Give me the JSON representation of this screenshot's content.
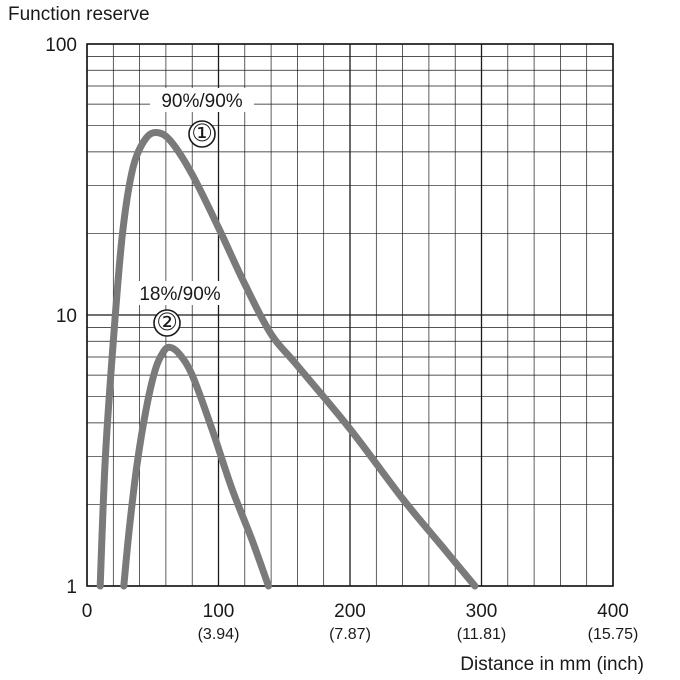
{
  "chart_data": {
    "type": "line",
    "ylabel": "Function reserve",
    "xlabel": "Distance in mm (inch)",
    "yscale": "log",
    "ylim": [
      1,
      100
    ],
    "xlim": [
      0,
      400
    ],
    "grid": true,
    "y_ticks": [
      {
        "value": 1,
        "label": "1"
      },
      {
        "value": 10,
        "label": "10"
      },
      {
        "value": 100,
        "label": "100"
      }
    ],
    "x_ticks": [
      {
        "value": 0,
        "label": "0",
        "sublabel": ""
      },
      {
        "value": 100,
        "label": "100",
        "sublabel": "(3.94)"
      },
      {
        "value": 200,
        "label": "200",
        "sublabel": "(7.87)"
      },
      {
        "value": 300,
        "label": "300",
        "sublabel": "(11.81)"
      },
      {
        "value": 400,
        "label": "400",
        "sublabel": "(15.75)"
      }
    ],
    "series": [
      {
        "name": "90%/90%",
        "marker": "①",
        "x": [
          10,
          14,
          20,
          27,
          35,
          45,
          55,
          65,
          80,
          100,
          120,
          140,
          160,
          200,
          240,
          270,
          295
        ],
        "y": [
          1,
          3,
          8,
          20,
          35,
          45,
          47,
          43,
          33,
          21,
          13,
          8.5,
          6.5,
          3.8,
          2.1,
          1.4,
          1
        ]
      },
      {
        "name": "18%/90%",
        "marker": "②",
        "x": [
          28,
          32,
          38,
          45,
          52,
          58,
          63,
          70,
          80,
          95,
          110,
          125,
          138
        ],
        "y": [
          1,
          1.6,
          2.8,
          4.5,
          6.3,
          7.3,
          7.6,
          7.2,
          6,
          3.8,
          2.3,
          1.5,
          1
        ]
      }
    ],
    "style": {
      "line_color": "#7a7a7a",
      "grid_color": "#1a1a1a"
    }
  }
}
